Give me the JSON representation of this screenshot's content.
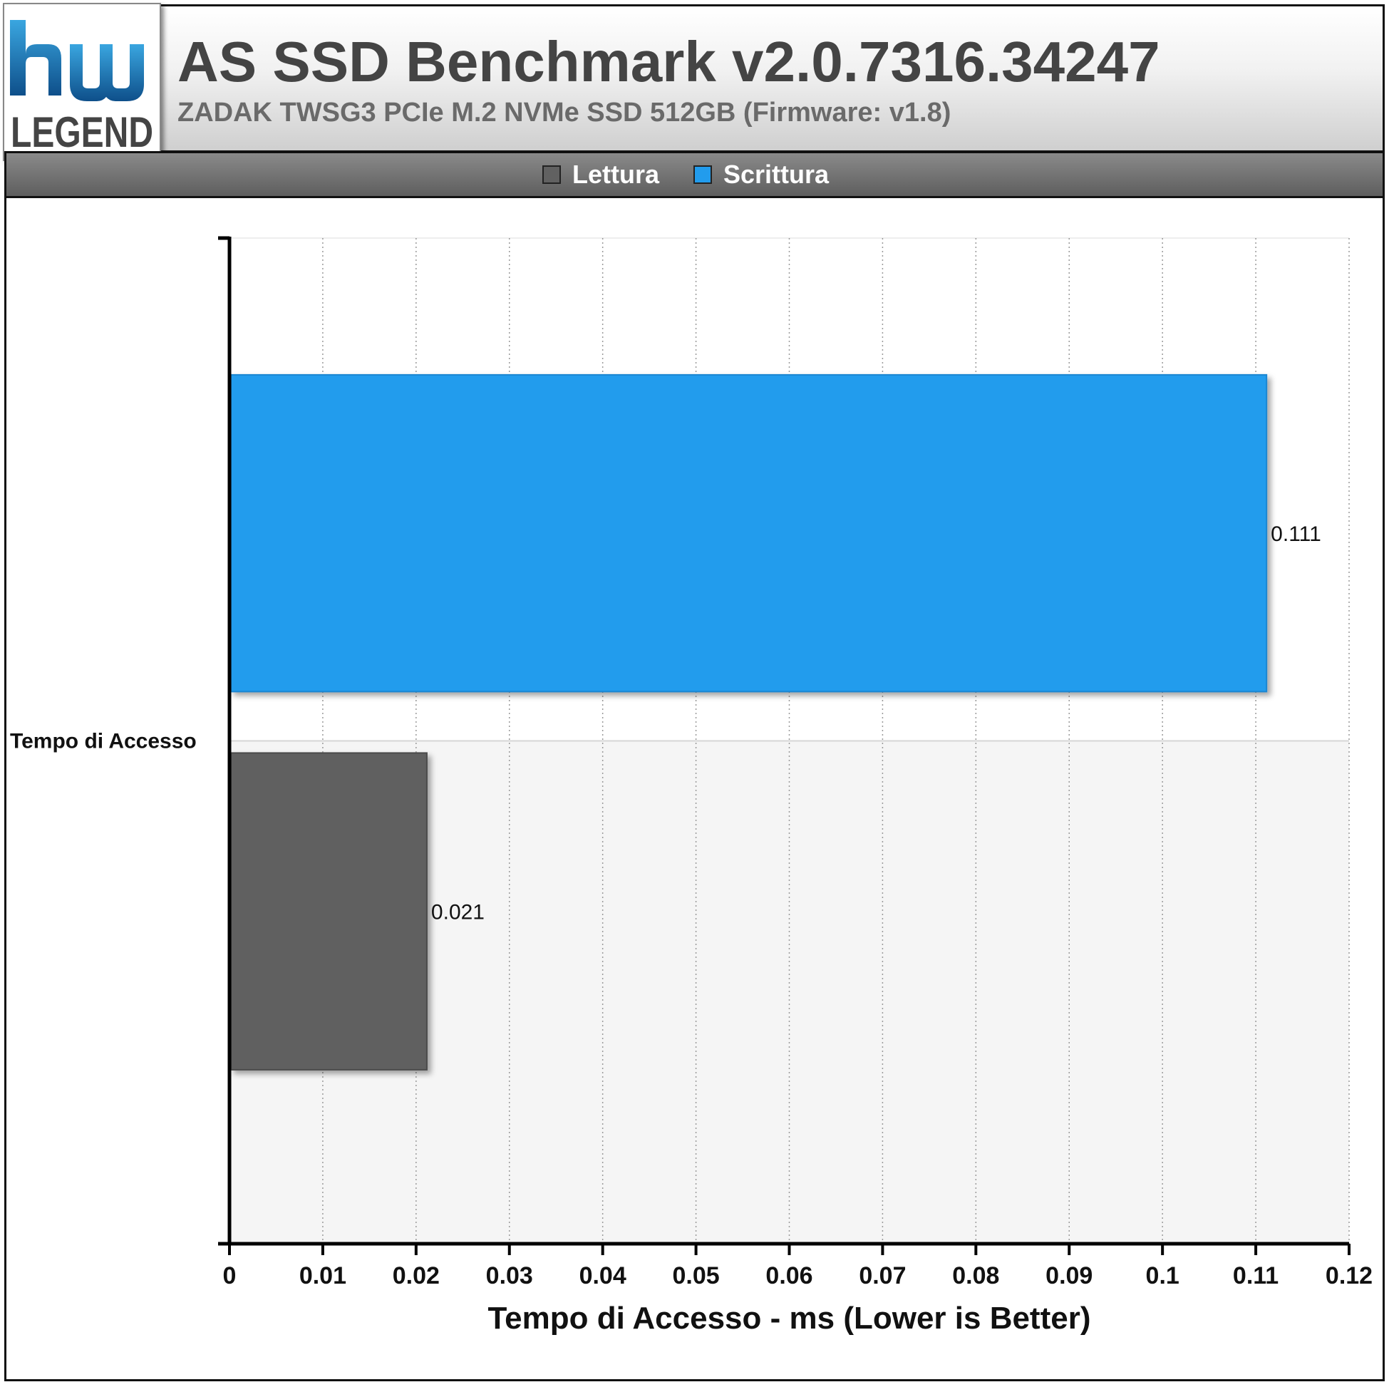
{
  "header": {
    "title": "AS SSD Benchmark v2.0.7316.34247",
    "subtitle": "ZADAK TWSG3 PCIe M.2 NVMe SSD 512GB (Firmware: v1.8)"
  },
  "logo": {
    "top_text": "hw",
    "bottom_text": "LEGEND",
    "accent": "#1a6fb3"
  },
  "chart_data": {
    "type": "bar",
    "orientation": "horizontal",
    "categories": [
      "Tempo di Accesso"
    ],
    "series": [
      {
        "name": "Lettura",
        "values": [
          0.021
        ],
        "color": "#616161"
      },
      {
        "name": "Scrittura",
        "values": [
          0.111
        ],
        "color": "#229ced"
      }
    ],
    "value_labels": [
      "0.021",
      "0.111"
    ],
    "xlabel": "Tempo di Accesso - ms (Lower is Better)",
    "xlim": [
      0,
      0.12
    ],
    "xticks": [
      0,
      0.01,
      0.02,
      0.03,
      0.04,
      0.05,
      0.06,
      0.07,
      0.08,
      0.09,
      0.1,
      0.11,
      0.12
    ],
    "xtick_labels": [
      "0",
      "0.01",
      "0.02",
      "0.03",
      "0.04",
      "0.05",
      "0.06",
      "0.07",
      "0.08",
      "0.09",
      "0.1",
      "0.11",
      "0.12"
    ],
    "grid": "vertical-dotted",
    "legend_position": "top-center"
  }
}
